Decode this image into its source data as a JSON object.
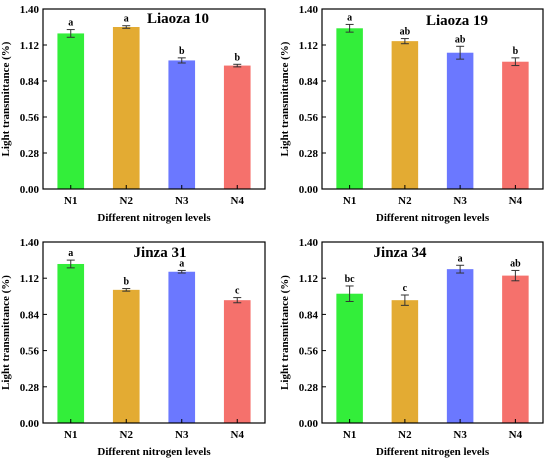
{
  "colors": {
    "N1": "#33ee3a",
    "N2": "#e3ab33",
    "N3": "#6b78ff",
    "N4": "#f5716c",
    "axis": "#000000",
    "errorbar": "#333333"
  },
  "chart_data": [
    {
      "type": "bar",
      "title": "Liaoza 10",
      "xlabel": "Different nitrogen levels",
      "ylabel": "Light transmittance (%)",
      "ylim": [
        0,
        1.4
      ],
      "yticks": [
        "0.00",
        "0.28",
        "0.56",
        "0.84",
        "1.12",
        "1.40"
      ],
      "categories": [
        "N1",
        "N2",
        "N3",
        "N4"
      ],
      "values": [
        1.21,
        1.26,
        1.0,
        0.96
      ],
      "errors": [
        0.03,
        0.01,
        0.02,
        0.01
      ],
      "significance": [
        "a",
        "a",
        "b",
        "b"
      ],
      "legend": "none",
      "grid": false
    },
    {
      "type": "bar",
      "title": "Liaoza 19",
      "xlabel": "Different nitrogen levels",
      "ylabel": "Light transmittance (%)",
      "ylim": [
        0,
        1.4
      ],
      "yticks": [
        "0.00",
        "0.28",
        "0.56",
        "0.84",
        "1.12",
        "1.40"
      ],
      "categories": [
        "N1",
        "N2",
        "N3",
        "N4"
      ],
      "values": [
        1.25,
        1.15,
        1.06,
        0.99
      ],
      "errors": [
        0.03,
        0.02,
        0.05,
        0.03
      ],
      "significance": [
        "a",
        "ab",
        "ab",
        "b"
      ],
      "legend": "none",
      "grid": false
    },
    {
      "type": "bar",
      "title": "Jinza 31",
      "xlabel": "Different nitrogen levels",
      "ylabel": "Light transmittance (%)",
      "ylim": [
        0,
        1.4
      ],
      "yticks": [
        "0.00",
        "0.28",
        "0.56",
        "0.84",
        "1.12",
        "1.40"
      ],
      "categories": [
        "N1",
        "N2",
        "N3",
        "N4"
      ],
      "values": [
        1.23,
        1.03,
        1.17,
        0.95
      ],
      "errors": [
        0.03,
        0.01,
        0.01,
        0.02
      ],
      "significance": [
        "a",
        "b",
        "a",
        "c"
      ],
      "legend": "none",
      "grid": false
    },
    {
      "type": "bar",
      "title": "Jinza 34",
      "xlabel": "Different nitrogen levels",
      "ylabel": "Light transmittance (%)",
      "ylim": [
        0,
        1.4
      ],
      "yticks": [
        "0.00",
        "0.28",
        "0.56",
        "0.84",
        "1.12",
        "1.40"
      ],
      "categories": [
        "N1",
        "N2",
        "N3",
        "N4"
      ],
      "values": [
        1.0,
        0.95,
        1.19,
        1.14
      ],
      "errors": [
        0.06,
        0.04,
        0.03,
        0.04
      ],
      "significance": [
        "bc",
        "c",
        "a",
        "ab"
      ],
      "legend": "none",
      "grid": false
    }
  ]
}
